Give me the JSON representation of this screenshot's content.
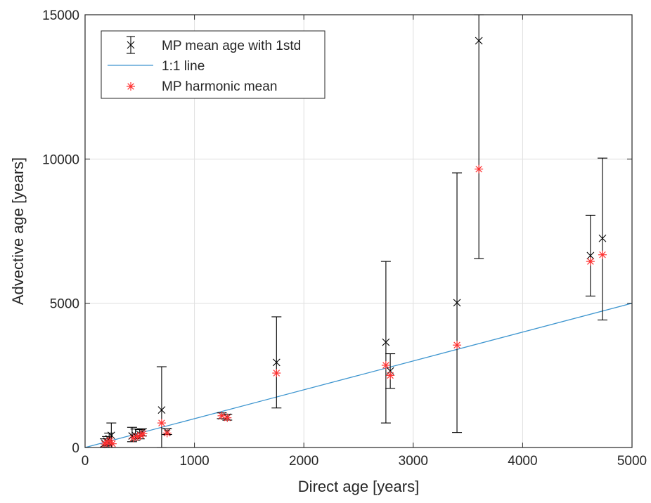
{
  "chart_data": {
    "type": "scatter",
    "title": "",
    "xlabel": "Direct age [years]",
    "ylabel": "Advective age [years]",
    "xlim": [
      0,
      5000
    ],
    "ylim": [
      0,
      15000
    ],
    "x_ticks": [
      "0",
      "1000",
      "2000",
      "3000",
      "4000",
      "5000"
    ],
    "y_ticks": [
      "0",
      "5000",
      "10000",
      "15000"
    ],
    "grid": true,
    "legend_position": "top-left",
    "series": [
      {
        "name": "MP mean age with 1std",
        "marker": "x",
        "color": "#000000",
        "points": [
          {
            "x": 180,
            "y": 150,
            "low": 20,
            "high": 300
          },
          {
            "x": 200,
            "y": 220,
            "low": 60,
            "high": 380
          },
          {
            "x": 220,
            "y": 300,
            "low": 100,
            "high": 500
          },
          {
            "x": 240,
            "y": 420,
            "low": 0,
            "high": 850
          },
          {
            "x": 430,
            "y": 400,
            "low": 200,
            "high": 700
          },
          {
            "x": 460,
            "y": 420,
            "low": 250,
            "high": 640
          },
          {
            "x": 500,
            "y": 460,
            "low": 300,
            "high": 620
          },
          {
            "x": 520,
            "y": 520,
            "low": 400,
            "high": 650
          },
          {
            "x": 700,
            "y": 1300,
            "low": 0,
            "high": 2800
          },
          {
            "x": 750,
            "y": 550,
            "low": 450,
            "high": 650
          },
          {
            "x": 1250,
            "y": 1100,
            "low": 1000,
            "high": 1200
          },
          {
            "x": 1300,
            "y": 1050,
            "low": 950,
            "high": 1150
          },
          {
            "x": 1750,
            "y": 2950,
            "low": 1370,
            "high": 4530
          },
          {
            "x": 2750,
            "y": 3650,
            "low": 850,
            "high": 6450
          },
          {
            "x": 2790,
            "y": 2650,
            "low": 2050,
            "high": 3250
          },
          {
            "x": 3400,
            "y": 5020,
            "low": 520,
            "high": 9520
          },
          {
            "x": 3600,
            "y": 14100,
            "low": 6550,
            "high": 15000
          },
          {
            "x": 4620,
            "y": 6650,
            "low": 5250,
            "high": 8050
          },
          {
            "x": 4730,
            "y": 7250,
            "low": 4420,
            "high": 10030
          }
        ]
      },
      {
        "name": "1:1 line",
        "line": true,
        "color": "#3d95cf",
        "x": [
          0,
          5000
        ],
        "y": [
          0,
          5000
        ]
      },
      {
        "name": "MP harmonic mean",
        "marker": "*",
        "color": "#ff3030",
        "points": [
          {
            "x": 180,
            "y": 120
          },
          {
            "x": 200,
            "y": 180
          },
          {
            "x": 230,
            "y": 250
          },
          {
            "x": 250,
            "y": 130
          },
          {
            "x": 440,
            "y": 330
          },
          {
            "x": 480,
            "y": 380
          },
          {
            "x": 510,
            "y": 420
          },
          {
            "x": 530,
            "y": 480
          },
          {
            "x": 700,
            "y": 850
          },
          {
            "x": 750,
            "y": 500
          },
          {
            "x": 1250,
            "y": 1100
          },
          {
            "x": 1300,
            "y": 1030
          },
          {
            "x": 1750,
            "y": 2580
          },
          {
            "x": 2750,
            "y": 2850
          },
          {
            "x": 2790,
            "y": 2500
          },
          {
            "x": 3400,
            "y": 3550
          },
          {
            "x": 3600,
            "y": 9650
          },
          {
            "x": 4620,
            "y": 6450
          },
          {
            "x": 4730,
            "y": 6680
          }
        ]
      }
    ]
  }
}
